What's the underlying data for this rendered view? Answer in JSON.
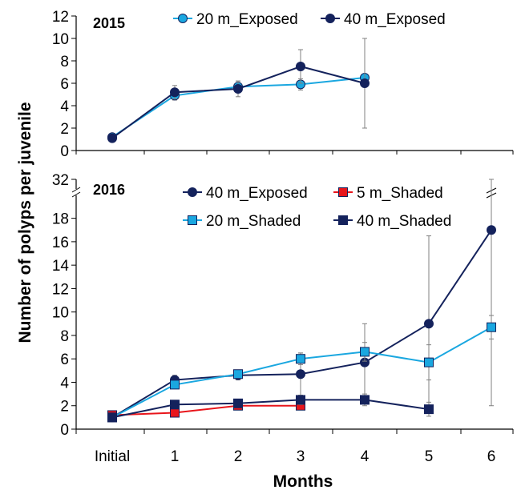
{
  "chart_data": [
    {
      "type": "line",
      "panel_label": "2015",
      "x": [
        "Initial",
        "1",
        "2",
        "3",
        "4"
      ],
      "ylim": [
        0,
        12
      ],
      "yticks": [
        0,
        2,
        4,
        6,
        8,
        10,
        12
      ],
      "grid": false,
      "legend_position": "top",
      "series": [
        {
          "name": "20 m_Exposed",
          "marker": "circle",
          "color": "#1AA7E0",
          "values": [
            1.2,
            4.9,
            5.7,
            5.9,
            6.5
          ],
          "error": [
            0.2,
            0.4,
            0.5,
            0.5,
            0.0
          ]
        },
        {
          "name": "40 m_Exposed",
          "marker": "circle",
          "color": "#14225C",
          "values": [
            1.1,
            5.2,
            5.5,
            7.5,
            6.0
          ],
          "error": [
            0.2,
            0.6,
            0.7,
            1.5,
            4.0
          ]
        }
      ]
    },
    {
      "type": "line",
      "panel_label": "2016",
      "x": [
        "Initial",
        "1",
        "2",
        "3",
        "4",
        "5",
        "6"
      ],
      "ylim": [
        0,
        32
      ],
      "y_axis_break": [
        19,
        31
      ],
      "yticks": [
        0,
        2,
        4,
        6,
        8,
        10,
        12,
        14,
        16,
        18,
        32
      ],
      "grid": false,
      "legend_position": "top",
      "series": [
        {
          "name": "40 m_Exposed",
          "marker": "circle",
          "color": "#14225C",
          "values": [
            1.0,
            4.2,
            4.6,
            4.7,
            5.7,
            9.0,
            17.0
          ],
          "error": [
            0.1,
            0.4,
            0.4,
            1.8,
            3.3,
            7.5,
            15.0
          ]
        },
        {
          "name": "5 m_Shaded",
          "marker": "square",
          "color": "#E8151B",
          "values": [
            1.2,
            1.4,
            2.0,
            2.0,
            null,
            null,
            null
          ],
          "error": [
            0.1,
            0.2,
            0.2,
            0.3,
            null,
            null,
            null
          ]
        },
        {
          "name": "20 m_Shaded",
          "marker": "square",
          "color": "#1AA7E0",
          "values": [
            1.0,
            3.8,
            4.7,
            6.0,
            6.6,
            5.7,
            8.7
          ],
          "error": [
            0.1,
            0.3,
            0.3,
            0.5,
            0.8,
            1.5,
            1.0
          ]
        },
        {
          "name": "40 m_Shaded",
          "marker": "square",
          "color": "#14225C",
          "values": [
            1.0,
            2.1,
            2.2,
            2.5,
            2.5,
            1.7,
            null
          ],
          "error": [
            0.1,
            0.3,
            0.3,
            0.4,
            0.5,
            0.6,
            null
          ]
        }
      ]
    }
  ],
  "axes": {
    "ylabel": "Number of polyps per juvenile",
    "xlabel": "Months"
  }
}
